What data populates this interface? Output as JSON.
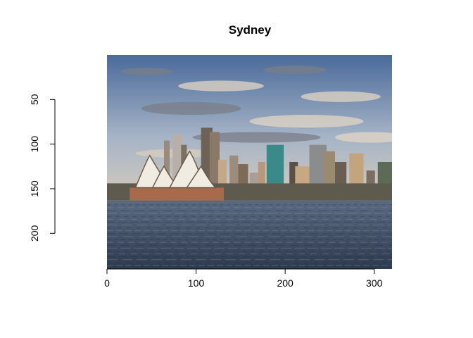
{
  "chart_data": {
    "type": "image",
    "title": "Sydney",
    "xlabel": "",
    "ylabel": "",
    "xlim": [
      0,
      320
    ],
    "ylim": [
      240,
      0
    ],
    "x_ticks": [
      0,
      100,
      200,
      300
    ],
    "y_ticks": [
      50,
      100,
      150,
      200
    ],
    "image": {
      "subject": "sydney-harbour-skyline-photo",
      "x_range": [
        0,
        320
      ],
      "y_range": [
        0,
        240
      ],
      "colors": {
        "sky_top": "#4a6a9a",
        "sky_mid": "#a6b4c6",
        "cloud_light": "#e2d6c4",
        "cloud_dark": "#7a7e88",
        "horizon": "#d8cdbd",
        "water_top": "#5a6a80",
        "water_bottom": "#2e3a4e",
        "opera_shell": "#f1ece2",
        "opera_shadow": "#6a5a4c",
        "podium": "#a86a4a",
        "tower_glass": "#3a8a8a"
      }
    }
  }
}
